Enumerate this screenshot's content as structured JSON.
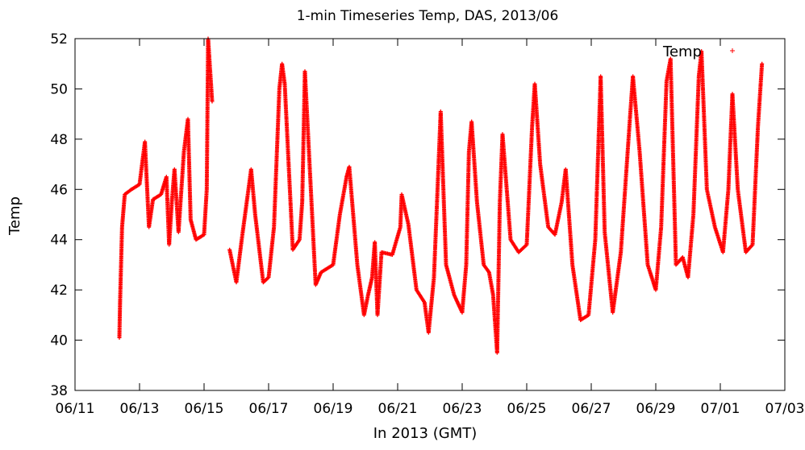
{
  "chart_data": {
    "type": "scatter",
    "title": "1-min Timeseries Temp, DAS, 2013/06",
    "xlabel": "In 2013 (GMT)",
    "ylabel": "Temp",
    "xlim": [
      "2013-06-11",
      "2013-07-03"
    ],
    "ylim": [
      38,
      52
    ],
    "x_ticks": [
      "06/11",
      "06/13",
      "06/15",
      "06/17",
      "06/19",
      "06/21",
      "06/23",
      "06/25",
      "06/27",
      "06/29",
      "07/01",
      "07/03"
    ],
    "y_ticks": [
      "38",
      "40",
      "42",
      "44",
      "46",
      "48",
      "50",
      "52"
    ],
    "legend": {
      "position": "top-right",
      "label": "Temp"
    },
    "grid": false,
    "series": [
      {
        "name": "Temp",
        "color": "#ff0000",
        "marker": "+",
        "points": [
          [
            "2013-06-12 09:00",
            40.1
          ],
          [
            "2013-06-12 09:30",
            41.5
          ],
          [
            "2013-06-12 11:00",
            44.5
          ],
          [
            "2013-06-12 13:00",
            45.8
          ],
          [
            "2013-06-12 18:00",
            46.0
          ],
          [
            "2013-06-13 00:00",
            46.2
          ],
          [
            "2013-06-13 04:00",
            47.9
          ],
          [
            "2013-06-13 07:00",
            44.5
          ],
          [
            "2013-06-13 10:00",
            45.6
          ],
          [
            "2013-06-13 16:00",
            45.8
          ],
          [
            "2013-06-13 20:00",
            46.5
          ],
          [
            "2013-06-13 22:00",
            43.8
          ],
          [
            "2013-06-14 00:00",
            45.5
          ],
          [
            "2013-06-14 02:00",
            46.8
          ],
          [
            "2013-06-14 05:00",
            44.3
          ],
          [
            "2013-06-14 09:00",
            47.5
          ],
          [
            "2013-06-14 12:00",
            48.8
          ],
          [
            "2013-06-14 14:00",
            44.8
          ],
          [
            "2013-06-14 18:00",
            44.0
          ],
          [
            "2013-06-15 00:00",
            44.2
          ],
          [
            "2013-06-15 02:00",
            46.0
          ],
          [
            "2013-06-15 03:00",
            52.0
          ],
          [
            "2013-06-15 06:00",
            49.5
          ],
          [
            "2013-06-15 19:00",
            43.6
          ],
          [
            "2013-06-16 00:00",
            42.3
          ],
          [
            "2013-06-16 04:00",
            44.0
          ],
          [
            "2013-06-16 09:00",
            46.0
          ],
          [
            "2013-06-16 11:00",
            46.8
          ],
          [
            "2013-06-16 14:00",
            45.0
          ],
          [
            "2013-06-16 20:00",
            42.3
          ],
          [
            "2013-06-17 00:00",
            42.5
          ],
          [
            "2013-06-17 04:00",
            44.5
          ],
          [
            "2013-06-17 08:00",
            50.0
          ],
          [
            "2013-06-17 10:00",
            51.0
          ],
          [
            "2013-06-17 12:00",
            50.2
          ],
          [
            "2013-06-17 18:00",
            43.6
          ],
          [
            "2013-06-17 23:00",
            44.0
          ],
          [
            "2013-06-18 01:00",
            45.5
          ],
          [
            "2013-06-18 03:00",
            50.7
          ],
          [
            "2013-06-18 11:00",
            42.2
          ],
          [
            "2013-06-18 15:00",
            42.7
          ],
          [
            "2013-06-19 00:00",
            43.0
          ],
          [
            "2013-06-19 05:00",
            45.0
          ],
          [
            "2013-06-19 10:00",
            46.5
          ],
          [
            "2013-06-19 12:00",
            46.9
          ],
          [
            "2013-06-19 18:00",
            43.0
          ],
          [
            "2013-06-19 23:00",
            41.0
          ],
          [
            "2013-06-20 02:00",
            41.8
          ],
          [
            "2013-06-20 05:00",
            42.5
          ],
          [
            "2013-06-20 07:00",
            43.9
          ],
          [
            "2013-06-20 09:00",
            41.0
          ],
          [
            "2013-06-20 12:00",
            43.5
          ],
          [
            "2013-06-20 20:00",
            43.4
          ],
          [
            "2013-06-21 02:00",
            44.5
          ],
          [
            "2013-06-21 03:00",
            45.8
          ],
          [
            "2013-06-21 08:00",
            44.6
          ],
          [
            "2013-06-21 14:00",
            42.0
          ],
          [
            "2013-06-21 20:00",
            41.5
          ],
          [
            "2013-06-21 23:00",
            40.3
          ],
          [
            "2013-06-22 03:00",
            42.5
          ],
          [
            "2013-06-22 08:00",
            49.1
          ],
          [
            "2013-06-22 12:00",
            43.0
          ],
          [
            "2013-06-22 18:00",
            41.8
          ],
          [
            "2013-06-23 00:00",
            41.1
          ],
          [
            "2013-06-23 03:00",
            43.0
          ],
          [
            "2013-06-23 05:00",
            47.5
          ],
          [
            "2013-06-23 07:00",
            48.7
          ],
          [
            "2013-06-23 11:00",
            45.5
          ],
          [
            "2013-06-23 16:00",
            43.0
          ],
          [
            "2013-06-23 20:00",
            42.7
          ],
          [
            "2013-06-23 23:00",
            41.8
          ],
          [
            "2013-06-24 02:00",
            39.5
          ],
          [
            "2013-06-24 04:00",
            45.5
          ],
          [
            "2013-06-24 06:00",
            48.2
          ],
          [
            "2013-06-24 12:00",
            44.0
          ],
          [
            "2013-06-24 18:00",
            43.5
          ],
          [
            "2013-06-25 00:00",
            43.8
          ],
          [
            "2013-06-25 04:00",
            48.5
          ],
          [
            "2013-06-25 06:00",
            50.2
          ],
          [
            "2013-06-25 10:00",
            47.0
          ],
          [
            "2013-06-25 16:00",
            44.5
          ],
          [
            "2013-06-25 21:00",
            44.2
          ],
          [
            "2013-06-26 02:00",
            45.5
          ],
          [
            "2013-06-26 05:00",
            46.8
          ],
          [
            "2013-06-26 10:00",
            43.0
          ],
          [
            "2013-06-26 16:00",
            40.8
          ],
          [
            "2013-06-26 22:00",
            41.0
          ],
          [
            "2013-06-27 03:00",
            44.0
          ],
          [
            "2013-06-27 07:00",
            50.5
          ],
          [
            "2013-06-27 10:00",
            44.3
          ],
          [
            "2013-06-27 16:00",
            41.1
          ],
          [
            "2013-06-27 22:00",
            43.5
          ],
          [
            "2013-06-28 05:00",
            49.0
          ],
          [
            "2013-06-28 07:00",
            50.5
          ],
          [
            "2013-06-28 12:00",
            47.5
          ],
          [
            "2013-06-28 18:00",
            43.0
          ],
          [
            "2013-06-29 00:00",
            42.0
          ],
          [
            "2013-06-29 04:00",
            44.5
          ],
          [
            "2013-06-29 08:00",
            50.3
          ],
          [
            "2013-06-29 11:00",
            51.2
          ],
          [
            "2013-06-29 15:00",
            43.0
          ],
          [
            "2013-06-29 20:00",
            43.3
          ],
          [
            "2013-06-30 00:00",
            42.5
          ],
          [
            "2013-06-30 04:00",
            45.0
          ],
          [
            "2013-06-30 08:00",
            50.5
          ],
          [
            "2013-06-30 10:00",
            51.5
          ],
          [
            "2013-06-30 14:00",
            46.0
          ],
          [
            "2013-06-30 20:00",
            44.5
          ],
          [
            "2013-07-01 02:00",
            43.5
          ],
          [
            "2013-07-01 06:00",
            46.0
          ],
          [
            "2013-07-01 09:00",
            49.8
          ],
          [
            "2013-07-01 13:00",
            46.0
          ],
          [
            "2013-07-01 19:00",
            43.5
          ],
          [
            "2013-07-02 00:00",
            43.8
          ],
          [
            "2013-07-02 04:00",
            48.5
          ],
          [
            "2013-07-02 07:00",
            51.0
          ]
        ]
      }
    ]
  }
}
